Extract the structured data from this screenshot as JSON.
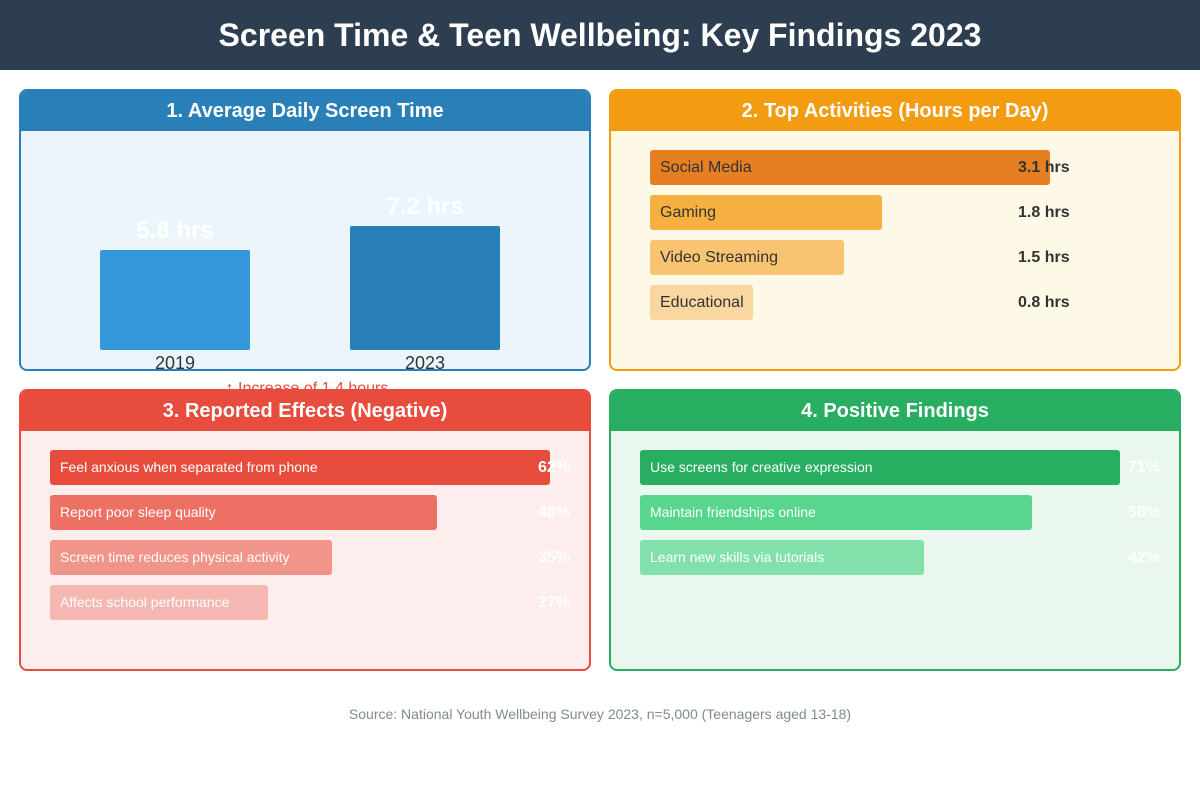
{
  "title": "Screen Time & Teen Wellbeing: Key Findings 2023",
  "source": "Source: National Youth Wellbeing Survey 2023, n=5,000 (Teenagers aged 13-18)",
  "colors": {
    "header": "#2c3e50",
    "screen_time": "#2980b9",
    "activities": "#f39c12",
    "negative": "#e74c3c",
    "positive": "#27ae60"
  },
  "panels": {
    "screen_time": {
      "title": "1. Average Daily Screen Time",
      "note": "↑ Increase of 1.4 hours"
    },
    "activities": {
      "title": "2. Top Activities (Hours per Day)"
    },
    "negative": {
      "title": "3. Reported Effects (Negative)"
    },
    "positive": {
      "title": "4. Positive Findings"
    }
  },
  "chart_data": [
    {
      "type": "bar",
      "title": "1. Average Daily Screen Time",
      "categories": [
        "2019",
        "2023"
      ],
      "values": [
        5.8,
        7.2
      ],
      "value_labels": [
        "5.8 hrs",
        "7.2 hrs"
      ],
      "bar_colors": [
        "#3498db",
        "#2980b9"
      ],
      "orientation": "vertical"
    },
    {
      "type": "bar",
      "title": "2. Top Activities (Hours per Day)",
      "orientation": "horizontal",
      "categories": [
        "Social Media",
        "Gaming",
        "Video Streaming",
        "Educational"
      ],
      "values": [
        3.1,
        1.8,
        1.5,
        0.8
      ],
      "value_labels": [
        "3.1 hrs",
        "1.8 hrs",
        "1.5 hrs",
        "0.8 hrs"
      ],
      "bar_colors": [
        "#e67e22",
        "#f5b041",
        "#f8c471",
        "#fad7a0"
      ]
    },
    {
      "type": "bar",
      "title": "3. Reported Effects (Negative)",
      "orientation": "horizontal",
      "categories": [
        "Feel anxious when separated from phone",
        "Report poor sleep quality",
        "Screen time reduces physical activity",
        "Affects school performance"
      ],
      "values": [
        62,
        48,
        35,
        27
      ],
      "value_labels": [
        "62%",
        "48%",
        "35%",
        "27%"
      ],
      "bar_colors": [
        "#e74c3c",
        "#ec7063",
        "#f1948a",
        "#f5b7b1"
      ]
    },
    {
      "type": "bar",
      "title": "4. Positive Findings",
      "orientation": "horizontal",
      "categories": [
        "Use screens for creative expression",
        "Maintain friendships online",
        "Learn new skills via tutorials"
      ],
      "values": [
        71,
        58,
        42
      ],
      "value_labels": [
        "71%",
        "58%",
        "42%"
      ],
      "bar_colors": [
        "#27ae60",
        "#58d68d",
        "#82e0aa"
      ]
    }
  ]
}
